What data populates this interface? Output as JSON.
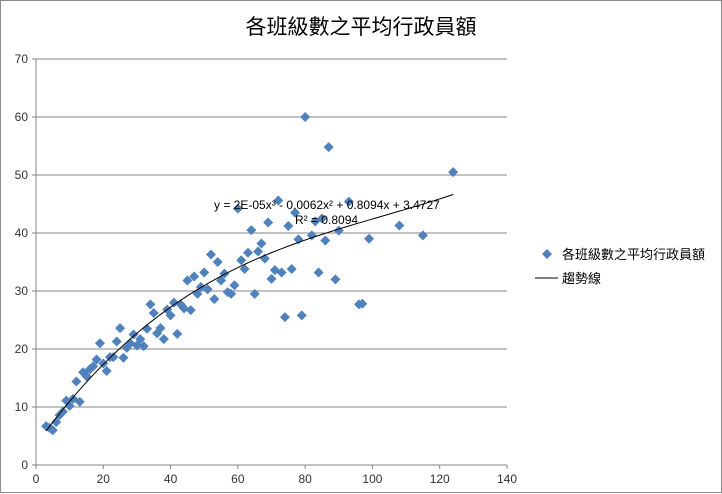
{
  "chart_data": {
    "type": "scatter",
    "title": "各班級數之平均行政員額",
    "xlim": [
      0,
      140
    ],
    "ylim": [
      0,
      70
    ],
    "x_ticks": [
      0,
      20,
      40,
      60,
      80,
      100,
      120,
      140
    ],
    "y_ticks": [
      0,
      10,
      20,
      30,
      40,
      50,
      60,
      70
    ],
    "grid": "horizontal",
    "legend_position": "right",
    "series": [
      {
        "name": "各班級數之平均行政員額",
        "marker": "diamond",
        "color": "#4f81bd",
        "points": [
          [
            3,
            6.7
          ],
          [
            4,
            6.4
          ],
          [
            5,
            6
          ],
          [
            6,
            7.4
          ],
          [
            7,
            8.6
          ],
          [
            8,
            9.2
          ],
          [
            9,
            11.1
          ],
          [
            10,
            10.2
          ],
          [
            11,
            11.4
          ],
          [
            12,
            14.4
          ],
          [
            13,
            10.9
          ],
          [
            14,
            16
          ],
          [
            15,
            15.3
          ],
          [
            16,
            16.5
          ],
          [
            17,
            17
          ],
          [
            18,
            18.2
          ],
          [
            19,
            21
          ],
          [
            20,
            17.5
          ],
          [
            21,
            16.2
          ],
          [
            22,
            18.6
          ],
          [
            23,
            18.6
          ],
          [
            24,
            21.3
          ],
          [
            25,
            23.6
          ],
          [
            26,
            18.5
          ],
          [
            27,
            20.2
          ],
          [
            28,
            21
          ],
          [
            29,
            22.5
          ],
          [
            30,
            20.6
          ],
          [
            31,
            21.7
          ],
          [
            32,
            20.5
          ],
          [
            33,
            23.5
          ],
          [
            34,
            27.7
          ],
          [
            35,
            26.2
          ],
          [
            36,
            22.7
          ],
          [
            37,
            23.6
          ],
          [
            38,
            21.7
          ],
          [
            39,
            26.8
          ],
          [
            40,
            25.8
          ],
          [
            41,
            28
          ],
          [
            42,
            22.6
          ],
          [
            43,
            27.7
          ],
          [
            44,
            27
          ],
          [
            45,
            31.8
          ],
          [
            46,
            26.7
          ],
          [
            47,
            32.5
          ],
          [
            48,
            29.5
          ],
          [
            49,
            30.7
          ],
          [
            50,
            33.2
          ],
          [
            51,
            30.3
          ],
          [
            52,
            36.3
          ],
          [
            53,
            28.6
          ],
          [
            54,
            35
          ],
          [
            55,
            31.8
          ],
          [
            56,
            33
          ],
          [
            57,
            29.8
          ],
          [
            58,
            29.5
          ],
          [
            59,
            31
          ],
          [
            60,
            44.2
          ],
          [
            61,
            35.3
          ],
          [
            62,
            33.8
          ],
          [
            63,
            36.6
          ],
          [
            64,
            40.5
          ],
          [
            65,
            29.5
          ],
          [
            66,
            36.8
          ],
          [
            67,
            38.2
          ],
          [
            68,
            35.6
          ],
          [
            69,
            41.8
          ],
          [
            70,
            32.1
          ],
          [
            71,
            33.6
          ],
          [
            72,
            45.6
          ],
          [
            73,
            33.2
          ],
          [
            74,
            25.5
          ],
          [
            75,
            41.2
          ],
          [
            76,
            33.8
          ],
          [
            77,
            43.5
          ],
          [
            78,
            38.9
          ],
          [
            79,
            25.8
          ],
          [
            80,
            60
          ],
          [
            82,
            39.6
          ],
          [
            83,
            42
          ],
          [
            84,
            33.2
          ],
          [
            85,
            42.5
          ],
          [
            86,
            38.7
          ],
          [
            87,
            54.8
          ],
          [
            89,
            32
          ],
          [
            90,
            40.4
          ],
          [
            93,
            45.4
          ],
          [
            96,
            27.7
          ],
          [
            97,
            27.8
          ],
          [
            99,
            39
          ],
          [
            108,
            41.3
          ],
          [
            115,
            39.6
          ],
          [
            124,
            50.5
          ]
        ]
      }
    ],
    "trendline": {
      "name": "趨勢線",
      "type": "polynomial",
      "coefficients": [
        2e-05,
        -0.0062,
        0.8094,
        3.4727
      ],
      "x_range": [
        3,
        124
      ],
      "color": "#000000",
      "equation_label": "y = 2E-05x³ - 0.0062x² + 0.8094x + 3.4727",
      "r_squared_label": "R² = 0.8094"
    }
  }
}
